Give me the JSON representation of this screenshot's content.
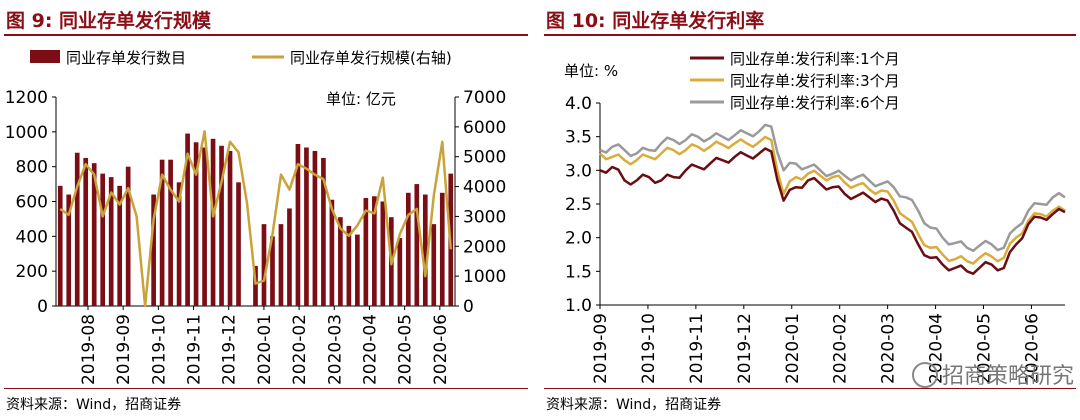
{
  "left": {
    "title": "图 9:  同业存单发行规模",
    "source": "资料来源：Wind，招商证券",
    "chart_data": {
      "type": "bar+line",
      "unit_label": "单位: 亿元",
      "legend_position": "top",
      "y_left_ticks": [
        "1200",
        "1000",
        "800",
        "600",
        "400",
        "200",
        "0"
      ],
      "y_right_ticks": [
        "7000",
        "6000",
        "5000",
        "4000",
        "3000",
        "2000",
        "1000",
        "0"
      ],
      "ylim_left": [
        0,
        1200
      ],
      "ylim_right": [
        0,
        7000
      ],
      "x_ticks": [
        "2019-08",
        "2019-09",
        "2019-10",
        "2019-11",
        "2019-12",
        "2020-01",
        "2020-02",
        "2020-03",
        "2020-04",
        "2020-05",
        "2020-06"
      ],
      "series": [
        {
          "name": "同业存单发行数目",
          "type": "bar",
          "color": "#7b0d14",
          "values": [
            690,
            640,
            880,
            850,
            820,
            760,
            740,
            690,
            800,
            0,
            0,
            640,
            840,
            840,
            710,
            990,
            940,
            910,
            960,
            920,
            890,
            710,
            0,
            230,
            470,
            400,
            470,
            560,
            930,
            910,
            890,
            850,
            610,
            510,
            460,
            410,
            620,
            630,
            600,
            510,
            390,
            650,
            700,
            640,
            470,
            650,
            760
          ]
        },
        {
          "name": "同业存单发行规模(右轴)",
          "type": "line",
          "color": "#c9a239",
          "values": [
            3250,
            3050,
            4000,
            4750,
            4400,
            3000,
            3800,
            3400,
            3950,
            3000,
            0,
            2900,
            4400,
            3900,
            3500,
            5100,
            4400,
            5850,
            3000,
            4150,
            5500,
            5150,
            3450,
            750,
            850,
            2400,
            4400,
            3900,
            4750,
            4600,
            4400,
            4250,
            3250,
            2600,
            2350,
            2700,
            3200,
            3100,
            4300,
            1400,
            2400,
            3050,
            3250,
            1000,
            3700,
            5500,
            1900
          ]
        }
      ]
    }
  },
  "right": {
    "title": "图 10:  同业存单发行利率",
    "source": "资料来源：Wind，招商证券",
    "watermark": "招商策略研究",
    "chart_data": {
      "type": "line",
      "unit_label": "单位: %",
      "legend_position": "top",
      "ylim": [
        1.0,
        4.0
      ],
      "y_ticks": [
        "4.0",
        "3.5",
        "3.0",
        "2.5",
        "2.0",
        "1.5",
        "1.0"
      ],
      "x_ticks": [
        "2019-09",
        "2019-10",
        "2019-11",
        "2019-12",
        "2020-01",
        "2020-02",
        "2020-03",
        "2020-04",
        "2020-05",
        "2020-06"
      ],
      "series": [
        {
          "name": "同业存单:发行利率:1个月",
          "color": "#6b0d12",
          "values": [
            3.0,
            3.05,
            2.85,
            2.85,
            2.9,
            2.85,
            2.9,
            3.0,
            3.05,
            3.1,
            3.15,
            3.2,
            3.22,
            3.25,
            3.28,
            2.55,
            2.75,
            2.85,
            2.8,
            2.75,
            2.65,
            2.62,
            2.6,
            2.58,
            2.4,
            2.15,
            1.9,
            1.7,
            1.6,
            1.55,
            1.5,
            1.55,
            1.6,
            1.55,
            1.9,
            2.2,
            2.3,
            2.35,
            2.38
          ]
        },
        {
          "name": "同业存单:发行利率:3个月",
          "color": "#d9ac3c",
          "values": [
            3.25,
            3.2,
            3.15,
            3.15,
            3.2,
            3.25,
            3.3,
            3.3,
            3.35,
            3.35,
            3.38,
            3.4,
            3.4,
            3.42,
            3.45,
            2.65,
            2.9,
            2.95,
            2.92,
            2.9,
            2.82,
            2.78,
            2.72,
            2.7,
            2.55,
            2.3,
            2.05,
            1.85,
            1.75,
            1.68,
            1.65,
            1.7,
            1.72,
            1.7,
            2.0,
            2.25,
            2.35,
            2.4,
            2.4
          ]
        },
        {
          "name": "同业存单:发行利率:6个月",
          "color": "#9a9a9a",
          "values": [
            3.3,
            3.35,
            3.3,
            3.25,
            3.3,
            3.4,
            3.45,
            3.45,
            3.5,
            3.48,
            3.5,
            3.52,
            3.55,
            3.58,
            3.65,
            3.0,
            3.1,
            3.05,
            3.0,
            2.95,
            2.92,
            2.9,
            2.85,
            2.8,
            2.75,
            2.6,
            2.4,
            2.15,
            2.0,
            1.92,
            1.85,
            1.88,
            1.9,
            1.85,
            2.15,
            2.4,
            2.5,
            2.6,
            2.6
          ]
        }
      ]
    }
  }
}
